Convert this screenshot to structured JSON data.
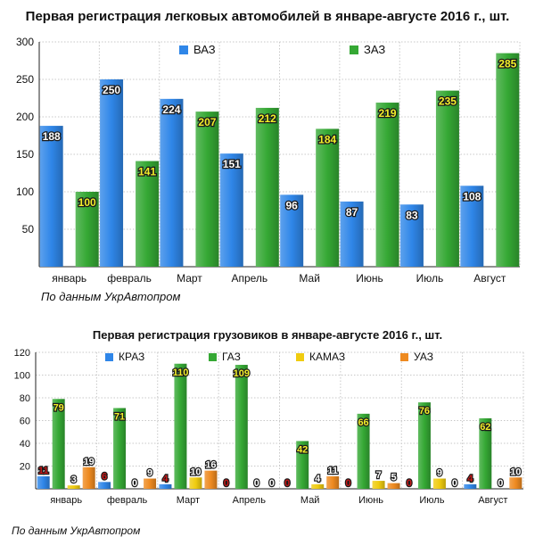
{
  "charts": {
    "passenger": {
      "title": "Первая регистрация легковых автомобилей в январе-августе 2016 г., шт.",
      "source": "По данным УкрАвтопром"
    },
    "trucks": {
      "title": "Первая регистрация грузовиков в январе-августе 2016 г., шт.",
      "source": "По данным УкрАвтопром"
    }
  },
  "colors": {
    "blue": "#2f86e8",
    "green": "#35a834",
    "yellow": "#f0cc10",
    "orange": "#ee8a20",
    "red_label": "#c81818",
    "grid": "#c8c8c8"
  },
  "chart_data": [
    {
      "type": "bar",
      "title": "Первая регистрация легковых автомобилей в январе-августе 2016 г., шт.",
      "categories": [
        "январь",
        "февраль",
        "Март",
        "Апрель",
        "Май",
        "Июнь",
        "Июль",
        "Август"
      ],
      "series": [
        {
          "name": "ВАЗ",
          "color": "#2f86e8",
          "values": [
            188,
            250,
            224,
            151,
            96,
            87,
            83,
            108
          ]
        },
        {
          "name": "ЗАЗ",
          "color": "#35a834",
          "values": [
            100,
            141,
            207,
            212,
            184,
            219,
            235,
            285
          ]
        }
      ],
      "ylim": [
        0,
        300
      ],
      "yticks": [
        50,
        100,
        150,
        200,
        250,
        300
      ],
      "xlabel": "",
      "ylabel": "",
      "legend": "top"
    },
    {
      "type": "bar",
      "title": "Первая регистрация грузовиков в январе-августе 2016 г., шт.",
      "categories": [
        "январь",
        "февраль",
        "Март",
        "Апрель",
        "Май",
        "Июнь",
        "Июль",
        "Август"
      ],
      "series": [
        {
          "name": "КРАЗ",
          "color": "#2f86e8",
          "values": [
            11,
            6,
            4,
            0,
            0,
            0,
            0,
            4
          ]
        },
        {
          "name": "ГАЗ",
          "color": "#35a834",
          "values": [
            79,
            71,
            110,
            109,
            42,
            66,
            76,
            62
          ]
        },
        {
          "name": "КАМАЗ",
          "color": "#f0cc10",
          "values": [
            3,
            0,
            10,
            0,
            4,
            7,
            9,
            0
          ]
        },
        {
          "name": "УАЗ",
          "color": "#ee8a20",
          "values": [
            19,
            9,
            16,
            0,
            11,
            5,
            0,
            10
          ]
        }
      ],
      "ylim": [
        0,
        120
      ],
      "yticks": [
        20,
        40,
        60,
        80,
        100,
        120
      ],
      "xlabel": "",
      "ylabel": "",
      "legend": "top"
    }
  ]
}
